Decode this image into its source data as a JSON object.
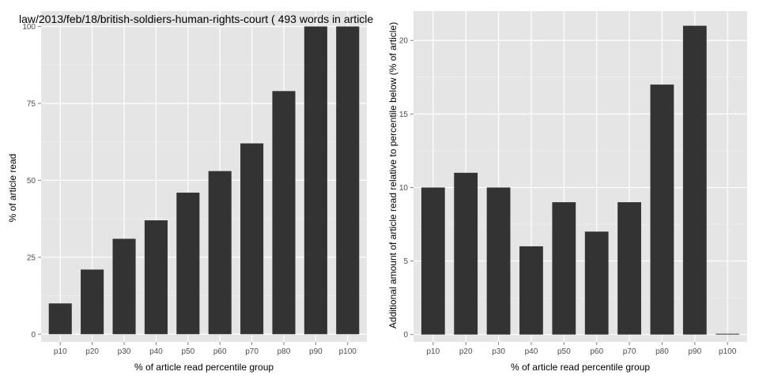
{
  "chart_data": [
    {
      "type": "bar",
      "title": "law/2013/feb/18/british-soldiers-human-rights-court ( 493 words in article",
      "xlabel": "% of article read percentile group",
      "ylabel": "% of article read",
      "categories": [
        "p10",
        "p20",
        "p30",
        "p40",
        "p50",
        "p60",
        "p70",
        "p80",
        "p90",
        "p100"
      ],
      "values": [
        10,
        21,
        31,
        37,
        46,
        53,
        62,
        79,
        100,
        100
      ],
      "ylim": [
        -2.5,
        105
      ],
      "yticks": [
        0,
        25,
        50,
        75,
        100
      ],
      "grid": true,
      "bar_color": "#333333",
      "panel_color": "#e5e5e5"
    },
    {
      "type": "bar",
      "title": "",
      "xlabel": "% of article read percentile group",
      "ylabel": "Additional amount of article read relative to percentile below (% of article)",
      "categories": [
        "p10",
        "p20",
        "p30",
        "p40",
        "p50",
        "p60",
        "p70",
        "p80",
        "p90",
        "p100"
      ],
      "values": [
        10,
        11,
        10,
        6,
        9,
        7,
        9,
        17,
        21,
        0
      ],
      "ylim": [
        -0.5,
        22
      ],
      "yticks": [
        0,
        5,
        10,
        15,
        20
      ],
      "grid": true,
      "bar_color": "#333333",
      "panel_color": "#e5e5e5"
    }
  ]
}
